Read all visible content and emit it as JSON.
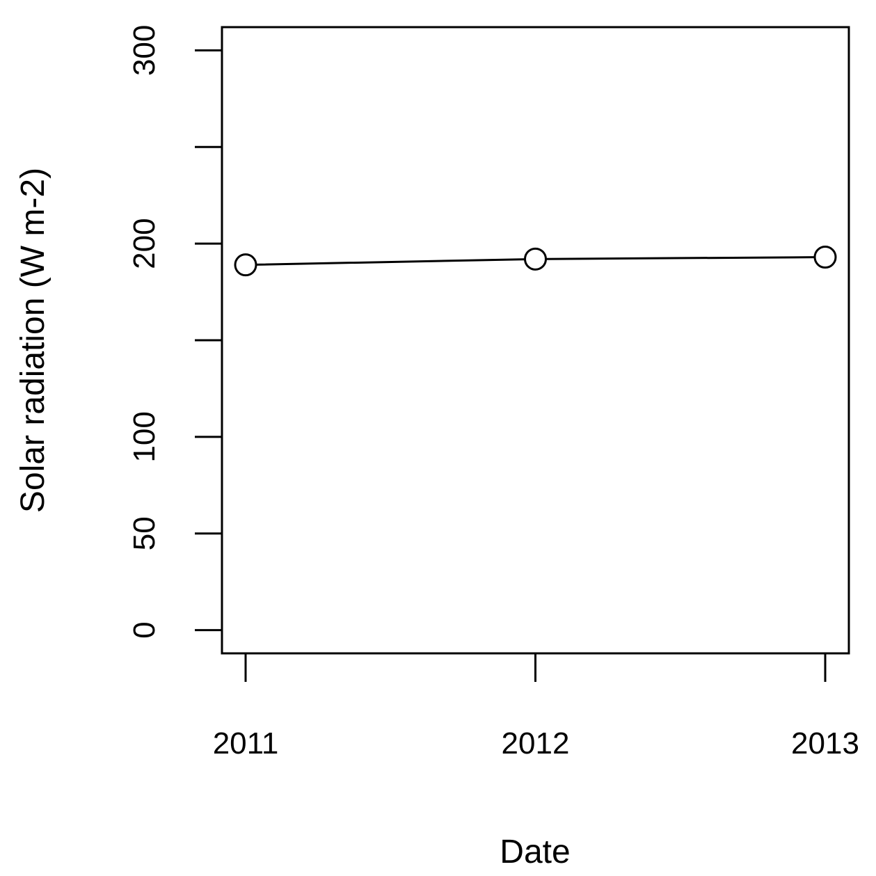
{
  "chart_data": {
    "type": "line",
    "title": "",
    "xlabel": "Date",
    "ylabel": "Solar radiation (W m-2)",
    "categories": [
      "2011",
      "2012",
      "2013"
    ],
    "series": [
      {
        "values": [
          189,
          192,
          193
        ]
      }
    ],
    "ylim": [
      -12,
      312
    ],
    "y_ticks": [
      0,
      50,
      100,
      150,
      200,
      250,
      300
    ],
    "y_tick_labels": [
      "0",
      "50",
      "100",
      "",
      "200",
      "",
      "300"
    ],
    "marker": "open-circle",
    "grid": false,
    "colors": {
      "line": "#000000",
      "background": "#ffffff"
    }
  }
}
